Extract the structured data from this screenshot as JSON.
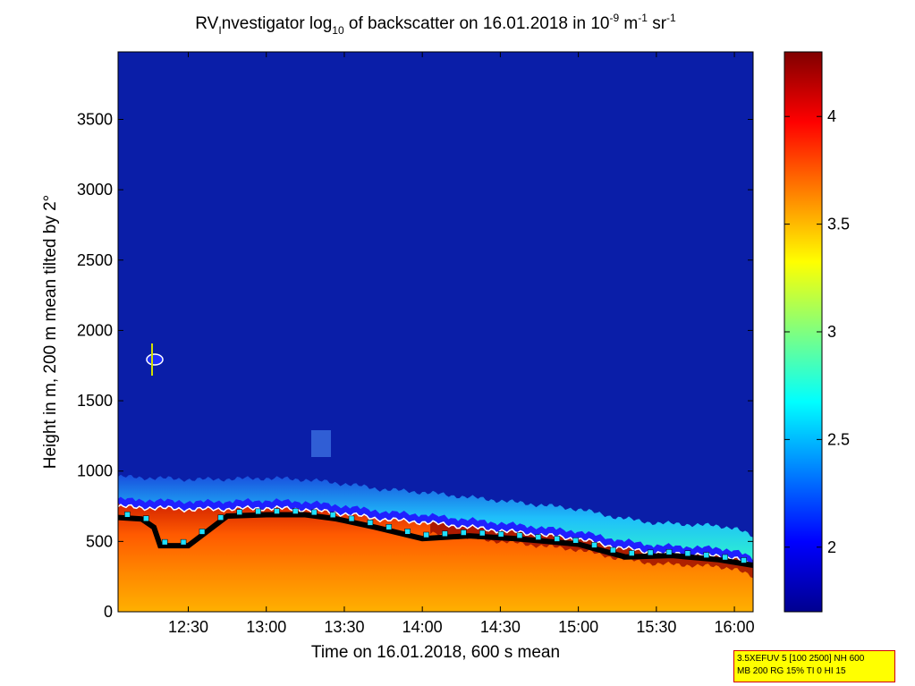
{
  "chart_data": {
    "type": "heatmap",
    "title": {
      "prefix": "RV",
      "sub1": "I",
      "part2": "nvestigator log",
      "sub2": "10",
      "part3": " of backscatter on 16.01.2018 in 10",
      "sup1": "-9",
      "part4": " m",
      "sup2": "-1",
      "part5": " sr",
      "sup3": "-1"
    },
    "xlabel": "Time on 16.01.2018, 600 s mean",
    "ylabel": "Height in m, 200 m mean tilted by 2°",
    "x_ticks": [
      "12:30",
      "13:00",
      "13:30",
      "14:00",
      "14:30",
      "15:00",
      "15:30",
      "16:00"
    ],
    "x_tick_hours": [
      12.5,
      13.0,
      13.5,
      14.0,
      14.5,
      15.0,
      15.5,
      16.0
    ],
    "xlim_hours": [
      12.05,
      16.12
    ],
    "y_ticks": [
      "0",
      "500",
      "1000",
      "1500",
      "2000",
      "2500",
      "3000",
      "3500"
    ],
    "y_tick_values": [
      0,
      500,
      1000,
      1500,
      2000,
      2500,
      3000,
      3500
    ],
    "ylim": [
      0,
      3980
    ],
    "colorbar": {
      "ticks": [
        "2",
        "2.5",
        "3",
        "3.5",
        "4"
      ],
      "tick_values": [
        2,
        2.5,
        3,
        3.5,
        4
      ],
      "range": [
        1.7,
        4.3
      ],
      "colormap": "jet"
    },
    "layer_top_profile": {
      "t": [
        12.05,
        12.3,
        12.55,
        12.8,
        13.0,
        13.25,
        13.5,
        13.75,
        14.0,
        14.25,
        14.5,
        14.75,
        15.0,
        15.25,
        15.5,
        15.75,
        16.0,
        16.12
      ],
      "h": [
        790,
        780,
        770,
        775,
        780,
        770,
        740,
        700,
        680,
        650,
        620,
        590,
        560,
        500,
        460,
        450,
        430,
        360
      ]
    },
    "mixing_layer_height": {
      "t": [
        12.05,
        12.2,
        12.28,
        12.32,
        12.5,
        12.75,
        13.0,
        13.25,
        13.45,
        13.7,
        14.0,
        14.3,
        14.6,
        15.0,
        15.3,
        15.6,
        15.9,
        16.12
      ],
      "h": [
        670,
        660,
        600,
        470,
        470,
        680,
        690,
        690,
        660,
        600,
        520,
        540,
        520,
        480,
        390,
        400,
        370,
        330
      ]
    }
  },
  "info_box": {
    "line1": "3.5XEFUV 5 [100 2500] NH 600",
    "line2": "MB 200 RG 15% TI 0 HI 15"
  }
}
